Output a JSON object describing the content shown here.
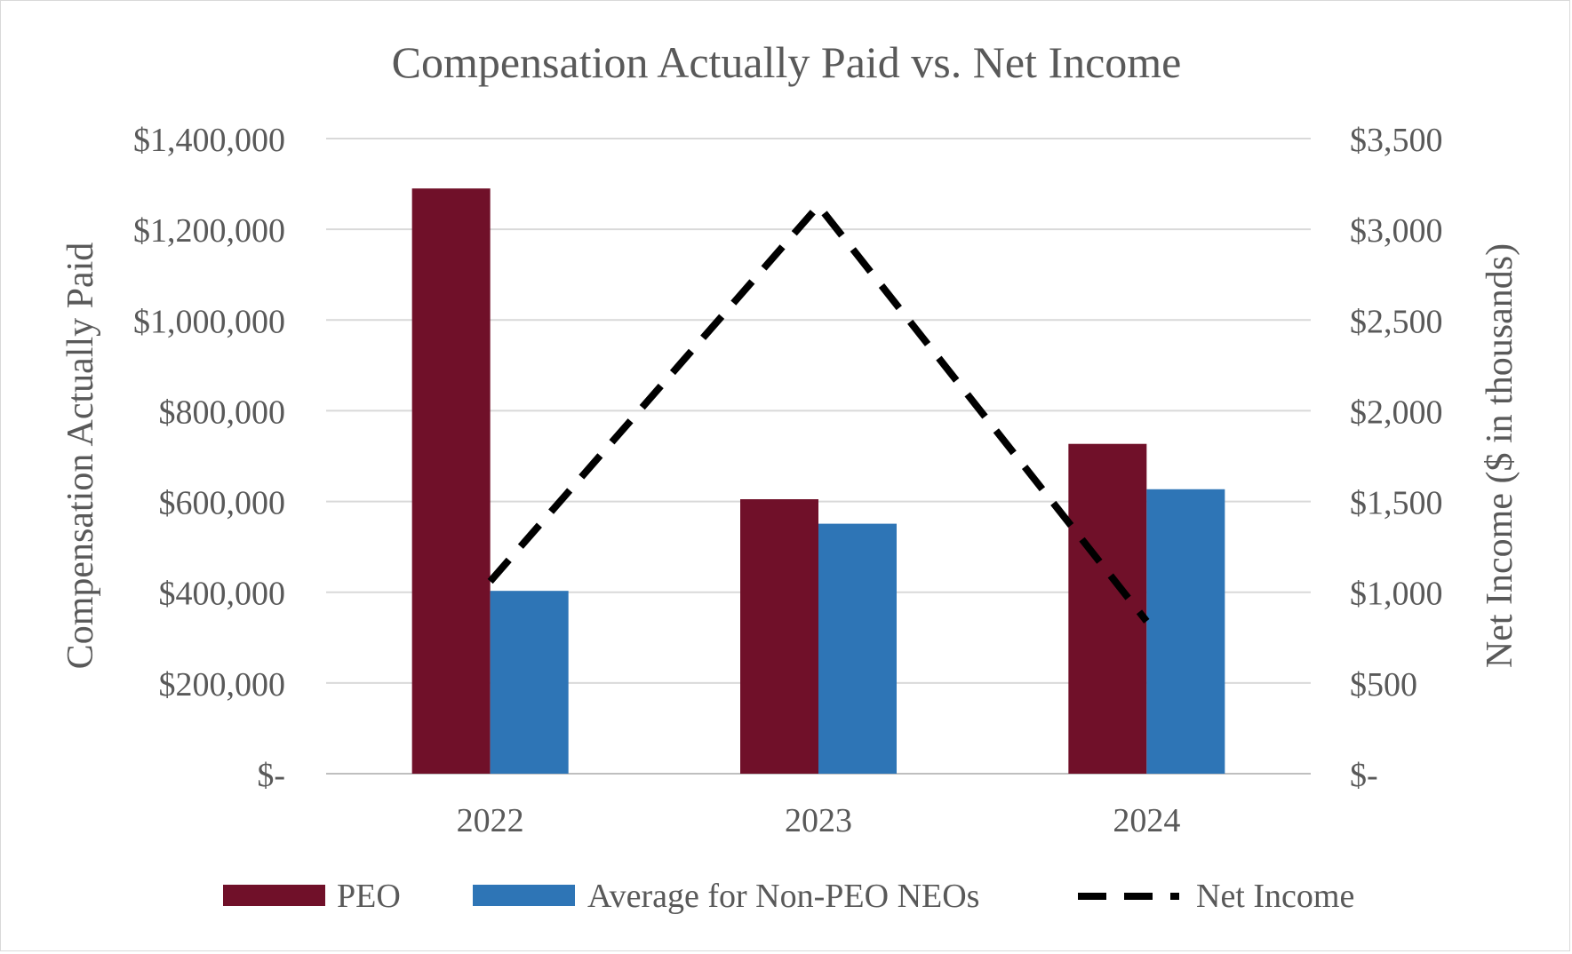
{
  "chart_data": {
    "type": "bar",
    "title": "Compensation Actually Paid vs. Net Income",
    "ylabel": "Compensation Actually Paid",
    "y2label": "Net Income ($ in thousands)",
    "categories": [
      "2022",
      "2023",
      "2024"
    ],
    "ylim": [
      0,
      1400000
    ],
    "y2lim": [
      0,
      3500
    ],
    "yticks": [
      0,
      200000,
      400000,
      600000,
      800000,
      1000000,
      1200000,
      1400000
    ],
    "ytick_labels": [
      "$-",
      "$200,000",
      "$400,000",
      "$600,000",
      "$800,000",
      "$1,000,000",
      "$1,200,000",
      "$1,400,000"
    ],
    "y2ticks": [
      0,
      500,
      1000,
      1500,
      2000,
      2500,
      3000,
      3500
    ],
    "y2tick_labels": [
      "$-",
      "$500",
      "$1,000",
      "$1,500",
      "$2,000",
      "$2,500",
      "$3,000",
      "$3,500"
    ],
    "grid": true,
    "legend_position": "bottom",
    "series": [
      {
        "name": "PEO",
        "type": "bar",
        "axis": "left",
        "color": "#701029",
        "values": [
          1290000,
          605000,
          727000
        ]
      },
      {
        "name": "Average for Non-PEO NEOs",
        "type": "bar",
        "axis": "left",
        "color": "#2e75b6",
        "values": [
          403000,
          551000,
          627000
        ]
      },
      {
        "name": "Net Income",
        "type": "line",
        "style": "dashed",
        "axis": "right",
        "color": "#000000",
        "values": [
          1060,
          3130,
          840
        ]
      }
    ]
  }
}
